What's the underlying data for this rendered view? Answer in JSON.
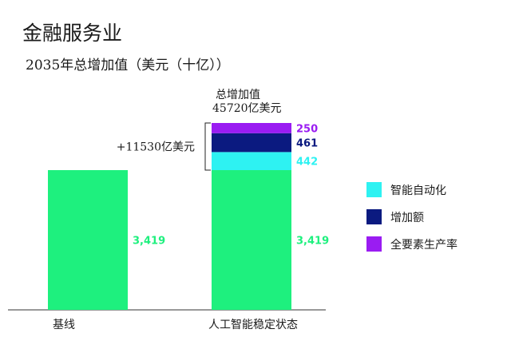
{
  "chart_data": {
    "type": "bar",
    "title": "金融服务业",
    "subtitle": "2035年总增加值（美元（十亿））",
    "categories": [
      "基线",
      "人工智能稳定状态"
    ],
    "series": [
      {
        "name": "",
        "values": [
          3419,
          3419
        ],
        "color": "#1ef07e",
        "value_labels": [
          "3,419",
          "3,419"
        ]
      },
      {
        "name": "智能自动化",
        "values": [
          0,
          442
        ],
        "color": "#2ef2f2",
        "value_labels": [
          "",
          "442"
        ]
      },
      {
        "name": "增加额",
        "values": [
          0,
          461
        ],
        "color": "#0b1a80",
        "value_labels": [
          "",
          "461"
        ]
      },
      {
        "name": "全要素生产率",
        "values": [
          0,
          250
        ],
        "color": "#9a1cf2",
        "value_labels": [
          "",
          "250"
        ]
      }
    ],
    "ylim": [
      0,
      4572
    ],
    "stacked": true,
    "total_label_line1": "总增加值",
    "total_label_line2": "45720亿美元",
    "bracket_label": "+11530亿美元",
    "legend_position": "right",
    "grid": false
  }
}
